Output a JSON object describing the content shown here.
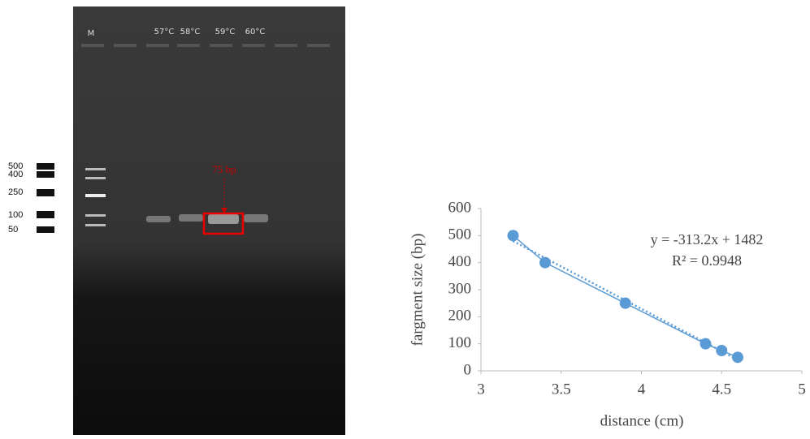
{
  "gel": {
    "lane_labels": [
      "M",
      "57°C",
      "58°C",
      "59°C",
      "60°C"
    ],
    "ladder_labels": [
      "500",
      "400",
      "250",
      "100",
      "50"
    ],
    "annotation": "75 bp"
  },
  "chart_data": {
    "type": "scatter",
    "xlabel": "distance (cm)",
    "ylabel": "fargment size (bp)",
    "x": [
      3.2,
      3.4,
      3.9,
      4.4,
      4.5,
      4.6
    ],
    "values": [
      500,
      400,
      250,
      100,
      75,
      50
    ],
    "color": "#5b9bd5",
    "xlim": [
      3,
      5
    ],
    "xticks": [
      3,
      3.5,
      4,
      4.5,
      5
    ],
    "ylim": [
      0,
      600
    ],
    "yticks": [
      0,
      100,
      200,
      300,
      400,
      500,
      600
    ],
    "trendline": {
      "slope": -313.2,
      "intercept": 1482,
      "label": "y = -313.2x + 1482",
      "r2_label": "R² = 0.9948"
    }
  }
}
